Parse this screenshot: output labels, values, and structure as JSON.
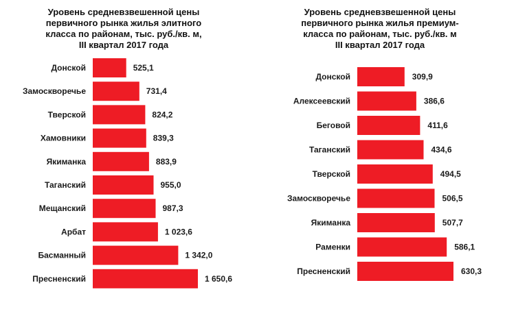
{
  "chart_data": [
    {
      "type": "bar",
      "orientation": "horizontal",
      "title": "Уровень средневзвешенной цены\nпервичного рынка жилья элитного\nкласса  по районам, тыс. руб./кв. м,\nIII квартал 2017 года",
      "categories": [
        "Донской",
        "Замоскворечье",
        "Тверской",
        "Хамовники",
        "Якиманка",
        "Таганский",
        "Мещанский",
        "Арбат",
        "Басманный",
        "Пресненский"
      ],
      "values": [
        525.1,
        731.4,
        824.2,
        839.3,
        883.9,
        955.0,
        987.3,
        1023.6,
        1342.0,
        1650.6
      ],
      "value_labels": [
        "525,1",
        "731,4",
        "824,2",
        "839,3",
        "883,9",
        "955,0",
        "987,3",
        "1 023,6",
        "1 342,0",
        "1 650,6"
      ],
      "xlim": [
        0,
        1650.6
      ],
      "grid": false,
      "legend": "none",
      "bar_color": "#ee1c25"
    },
    {
      "type": "bar",
      "orientation": "horizontal",
      "title": "Уровень средневзвешенной цены\nпервичного рынка жилья премиум-\nкласса  по районам, тыс. руб./кв. м\nIII квартал 2017 года",
      "categories": [
        "Донской",
        "Алексеевский",
        "Беговой",
        "Таганский",
        "Тверской",
        "Замоскворечье",
        "Якиманка",
        "Раменки",
        "Пресненский"
      ],
      "values": [
        309.9,
        386.6,
        411.6,
        434.6,
        494.5,
        506.5,
        507.7,
        586.1,
        630.3
      ],
      "value_labels": [
        "309,9",
        "386,6",
        "411,6",
        "434,6",
        "494,5",
        "506,5",
        "507,7",
        "586,1",
        "630,3"
      ],
      "xlim": [
        0,
        630.3
      ],
      "grid": false,
      "legend": "none",
      "bar_color": "#ee1c25"
    }
  ]
}
